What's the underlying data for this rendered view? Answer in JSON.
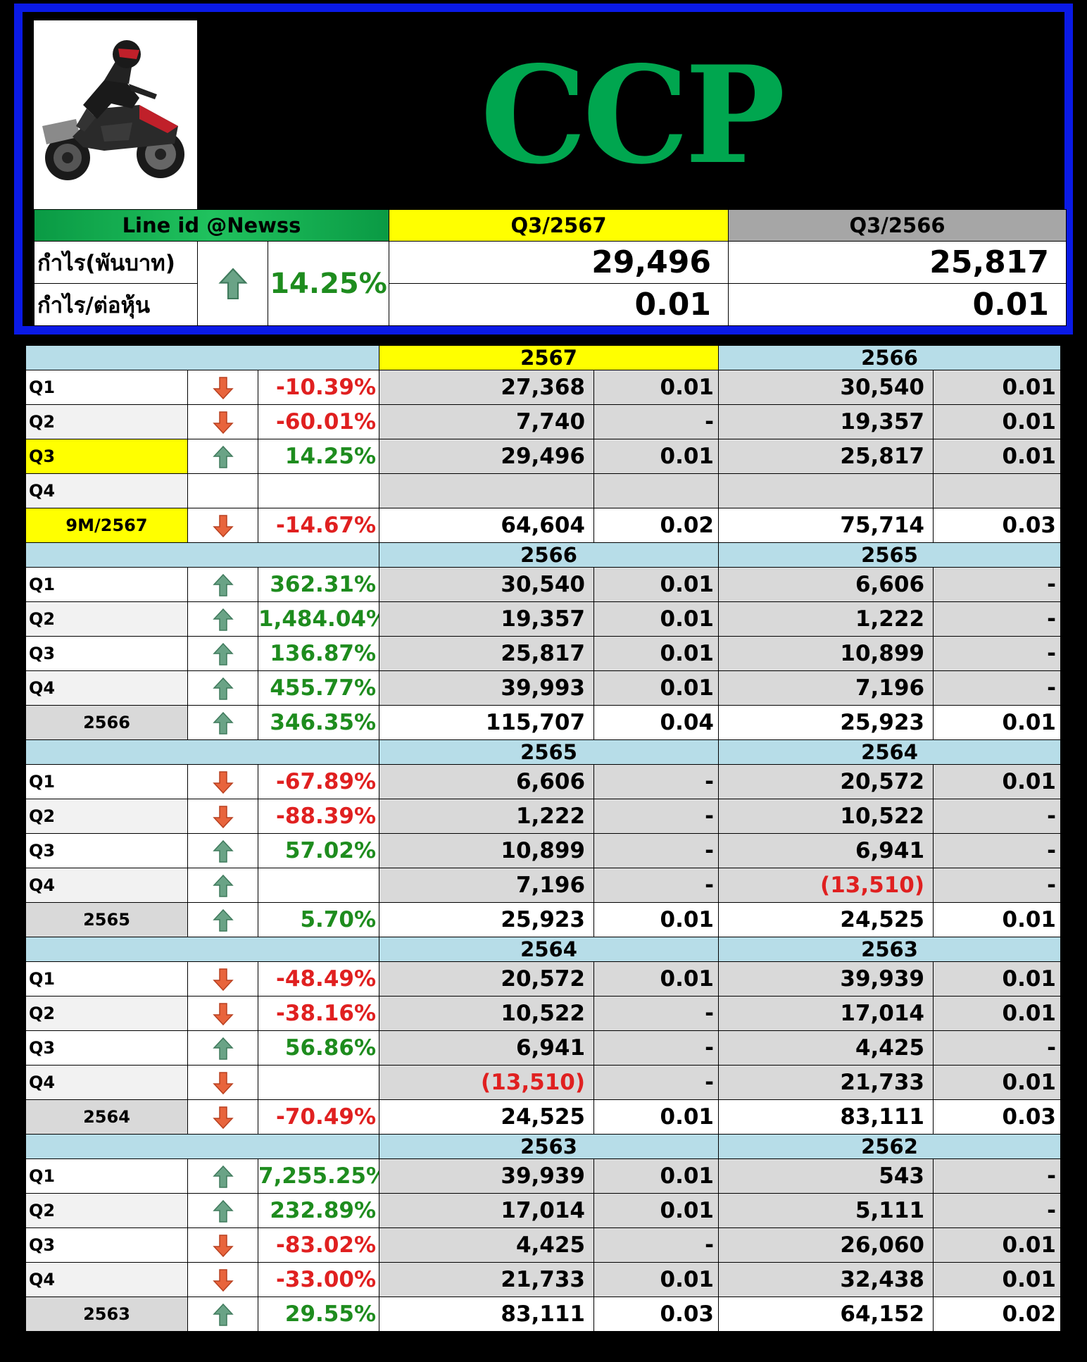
{
  "header": {
    "title": "CCP",
    "line_id": "Line id @Newss",
    "col_current": "Q3/2567",
    "col_previous": "Q3/2566",
    "profit_label": "กำไร(พันบาท)",
    "eps_label": "กำไร/ต่อหุ้น",
    "change_pct": "14.25%",
    "change_direction": "up",
    "profit_current": "29,496",
    "profit_previous": "25,817",
    "eps_current": "0.01",
    "eps_previous": "0.01",
    "logo_icon": "motorcycle-rider-icon"
  },
  "colors": {
    "up": "#1e8c1e",
    "down": "#e02020",
    "highlight": "#ffff00",
    "section": "#b7dde8",
    "border": "#0a1ae6"
  },
  "sections": [
    {
      "year_current": "2567",
      "year_previous": "2566",
      "current_highlight": true,
      "rows": [
        {
          "label": "Q1",
          "dir": "down",
          "pct": "-10.39%",
          "cur": "27,368",
          "cur_eps": "0.01",
          "prev": "30,540",
          "prev_eps": "0.01"
        },
        {
          "label": "Q2",
          "dir": "down",
          "pct": "-60.01%",
          "cur": "7,740",
          "cur_eps": "-",
          "prev": "19,357",
          "prev_eps": "0.01"
        },
        {
          "label": "Q3",
          "dir": "up",
          "pct": "14.25%",
          "cur": "29,496",
          "cur_eps": "0.01",
          "prev": "25,817",
          "prev_eps": "0.01",
          "highlight": true
        },
        {
          "label": "Q4",
          "dir": "",
          "pct": "",
          "cur": "",
          "cur_eps": "",
          "prev": "",
          "prev_eps": ""
        }
      ],
      "total": {
        "label": "9M/2567",
        "dir": "down",
        "pct": "-14.67%",
        "cur": "64,604",
        "cur_eps": "0.02",
        "prev": "75,714",
        "prev_eps": "0.03",
        "highlight": true
      }
    },
    {
      "year_current": "2566",
      "year_previous": "2565",
      "rows": [
        {
          "label": "Q1",
          "dir": "up",
          "pct": "362.31%",
          "cur": "30,540",
          "cur_eps": "0.01",
          "prev": "6,606",
          "prev_eps": "-"
        },
        {
          "label": "Q2",
          "dir": "up",
          "pct": "1,484.04%",
          "cur": "19,357",
          "cur_eps": "0.01",
          "prev": "1,222",
          "prev_eps": "-"
        },
        {
          "label": "Q3",
          "dir": "up",
          "pct": "136.87%",
          "cur": "25,817",
          "cur_eps": "0.01",
          "prev": "10,899",
          "prev_eps": "-"
        },
        {
          "label": "Q4",
          "dir": "up",
          "pct": "455.77%",
          "cur": "39,993",
          "cur_eps": "0.01",
          "prev": "7,196",
          "prev_eps": "-"
        }
      ],
      "total": {
        "label": "2566",
        "dir": "up",
        "pct": "346.35%",
        "cur": "115,707",
        "cur_eps": "0.04",
        "prev": "25,923",
        "prev_eps": "0.01"
      }
    },
    {
      "year_current": "2565",
      "year_previous": "2564",
      "rows": [
        {
          "label": "Q1",
          "dir": "down",
          "pct": "-67.89%",
          "cur": "6,606",
          "cur_eps": "-",
          "prev": "20,572",
          "prev_eps": "0.01"
        },
        {
          "label": "Q2",
          "dir": "down",
          "pct": "-88.39%",
          "cur": "1,222",
          "cur_eps": "-",
          "prev": "10,522",
          "prev_eps": "-"
        },
        {
          "label": "Q3",
          "dir": "up",
          "pct": "57.02%",
          "cur": "10,899",
          "cur_eps": "-",
          "prev": "6,941",
          "prev_eps": "-"
        },
        {
          "label": "Q4",
          "dir": "up",
          "pct": "",
          "cur": "7,196",
          "cur_eps": "-",
          "prev": "(13,510)",
          "prev_eps": "-"
        }
      ],
      "total": {
        "label": "2565",
        "dir": "up",
        "pct": "5.70%",
        "cur": "25,923",
        "cur_eps": "0.01",
        "prev": "24,525",
        "prev_eps": "0.01"
      }
    },
    {
      "year_current": "2564",
      "year_previous": "2563",
      "rows": [
        {
          "label": "Q1",
          "dir": "down",
          "pct": "-48.49%",
          "cur": "20,572",
          "cur_eps": "0.01",
          "prev": "39,939",
          "prev_eps": "0.01"
        },
        {
          "label": "Q2",
          "dir": "down",
          "pct": "-38.16%",
          "cur": "10,522",
          "cur_eps": "-",
          "prev": "17,014",
          "prev_eps": "0.01"
        },
        {
          "label": "Q3",
          "dir": "up",
          "pct": "56.86%",
          "cur": "6,941",
          "cur_eps": "-",
          "prev": "4,425",
          "prev_eps": "-"
        },
        {
          "label": "Q4",
          "dir": "down",
          "pct": "",
          "cur": "(13,510)",
          "cur_eps": "-",
          "prev": "21,733",
          "prev_eps": "0.01"
        }
      ],
      "total": {
        "label": "2564",
        "dir": "down",
        "pct": "-70.49%",
        "cur": "24,525",
        "cur_eps": "0.01",
        "prev": "83,111",
        "prev_eps": "0.03"
      }
    },
    {
      "year_current": "2563",
      "year_previous": "2562",
      "rows": [
        {
          "label": "Q1",
          "dir": "up",
          "pct": "7,255.25%",
          "cur": "39,939",
          "cur_eps": "0.01",
          "prev": "543",
          "prev_eps": "-"
        },
        {
          "label": "Q2",
          "dir": "up",
          "pct": "232.89%",
          "cur": "17,014",
          "cur_eps": "0.01",
          "prev": "5,111",
          "prev_eps": "-"
        },
        {
          "label": "Q3",
          "dir": "down",
          "pct": "-83.02%",
          "cur": "4,425",
          "cur_eps": "-",
          "prev": "26,060",
          "prev_eps": "0.01"
        },
        {
          "label": "Q4",
          "dir": "down",
          "pct": "-33.00%",
          "cur": "21,733",
          "cur_eps": "0.01",
          "prev": "32,438",
          "prev_eps": "0.01"
        }
      ],
      "total": {
        "label": "2563",
        "dir": "up",
        "pct": "29.55%",
        "cur": "83,111",
        "cur_eps": "0.03",
        "prev": "64,152",
        "prev_eps": "0.02"
      }
    }
  ]
}
